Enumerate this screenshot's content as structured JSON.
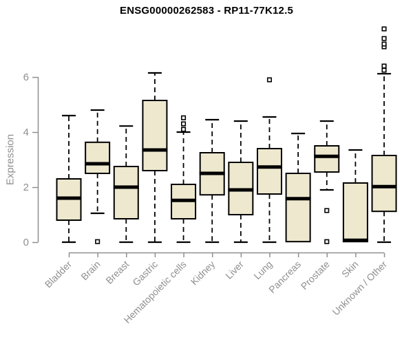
{
  "figure": {
    "title": "ENSG00000262583 - RP11-77K12.5"
  },
  "chart_data": {
    "type": "boxplot",
    "title": "ENSG00000262583 - RP11-77K12.5",
    "xlabel": "",
    "ylabel": "Expression",
    "yticks": [
      0,
      2,
      4,
      6
    ],
    "ylim": [
      0,
      8.8
    ],
    "grid": false,
    "categories": [
      "Bladder",
      "Brain",
      "Breast",
      "Gastric",
      "Hematopoietic cells",
      "Kidney",
      "Liver",
      "Lung",
      "Pancreas",
      "Prostate",
      "Skin",
      "Unknown / Other"
    ],
    "boxes": [
      {
        "label": "Bladder",
        "whisker_low": 0.0,
        "q1": 0.8,
        "median": 1.6,
        "q3": 2.3,
        "whisker_high": 4.6,
        "outliers": []
      },
      {
        "label": "Brain",
        "whisker_low": 1.05,
        "q1": 2.5,
        "median": 2.85,
        "q3": 3.63,
        "whisker_high": 4.8,
        "outliers": [
          0.02
        ]
      },
      {
        "label": "Breast",
        "whisker_low": 0.0,
        "q1": 0.85,
        "median": 2.0,
        "q3": 2.75,
        "whisker_high": 4.22,
        "outliers": []
      },
      {
        "label": "Gastric",
        "whisker_low": 0.0,
        "q1": 2.6,
        "median": 3.35,
        "q3": 5.15,
        "whisker_high": 6.15,
        "outliers": []
      },
      {
        "label": "Hematopoietic cells",
        "whisker_low": 0.0,
        "q1": 0.85,
        "median": 1.52,
        "q3": 2.1,
        "whisker_high": 4.0,
        "outliers": [
          4.1,
          4.3,
          4.52
        ]
      },
      {
        "label": "Kidney",
        "whisker_low": 0.0,
        "q1": 1.72,
        "median": 2.5,
        "q3": 3.25,
        "whisker_high": 4.45,
        "outliers": []
      },
      {
        "label": "Liver",
        "whisker_low": 0.0,
        "q1": 1.0,
        "median": 1.9,
        "q3": 2.9,
        "whisker_high": 4.4,
        "outliers": []
      },
      {
        "label": "Lung",
        "whisker_low": 0.0,
        "q1": 1.75,
        "median": 2.73,
        "q3": 3.4,
        "whisker_high": 4.55,
        "outliers": [
          5.9
        ]
      },
      {
        "label": "Pancreas",
        "whisker_low": 0.0,
        "q1": 0.02,
        "median": 1.58,
        "q3": 2.5,
        "whisker_high": 3.95,
        "outliers": []
      },
      {
        "label": "Prostate",
        "whisker_low": 1.9,
        "q1": 2.55,
        "median": 3.12,
        "q3": 3.5,
        "whisker_high": 4.4,
        "outliers": [
          1.15,
          0.02
        ]
      },
      {
        "label": "Skin",
        "whisker_low": 0.0,
        "q1": 0.02,
        "median": 0.07,
        "q3": 2.15,
        "whisker_high": 3.35,
        "outliers": []
      },
      {
        "label": "Unknown / Other",
        "whisker_low": 0.0,
        "q1": 1.12,
        "median": 2.02,
        "q3": 3.15,
        "whisker_high": 6.12,
        "outliers": [
          6.25,
          6.4,
          7.1,
          7.2,
          7.4,
          7.75
        ]
      }
    ],
    "colors": {
      "box_fill": "#EDE8CE",
      "box_border": "#000000",
      "median": "#000000",
      "whisker": "#000000",
      "outlier_stroke": "#000000",
      "axis": "#8f8f8f",
      "axis_text": "#8f8f8f",
      "title": "#000000",
      "background": "#ffffff"
    }
  }
}
